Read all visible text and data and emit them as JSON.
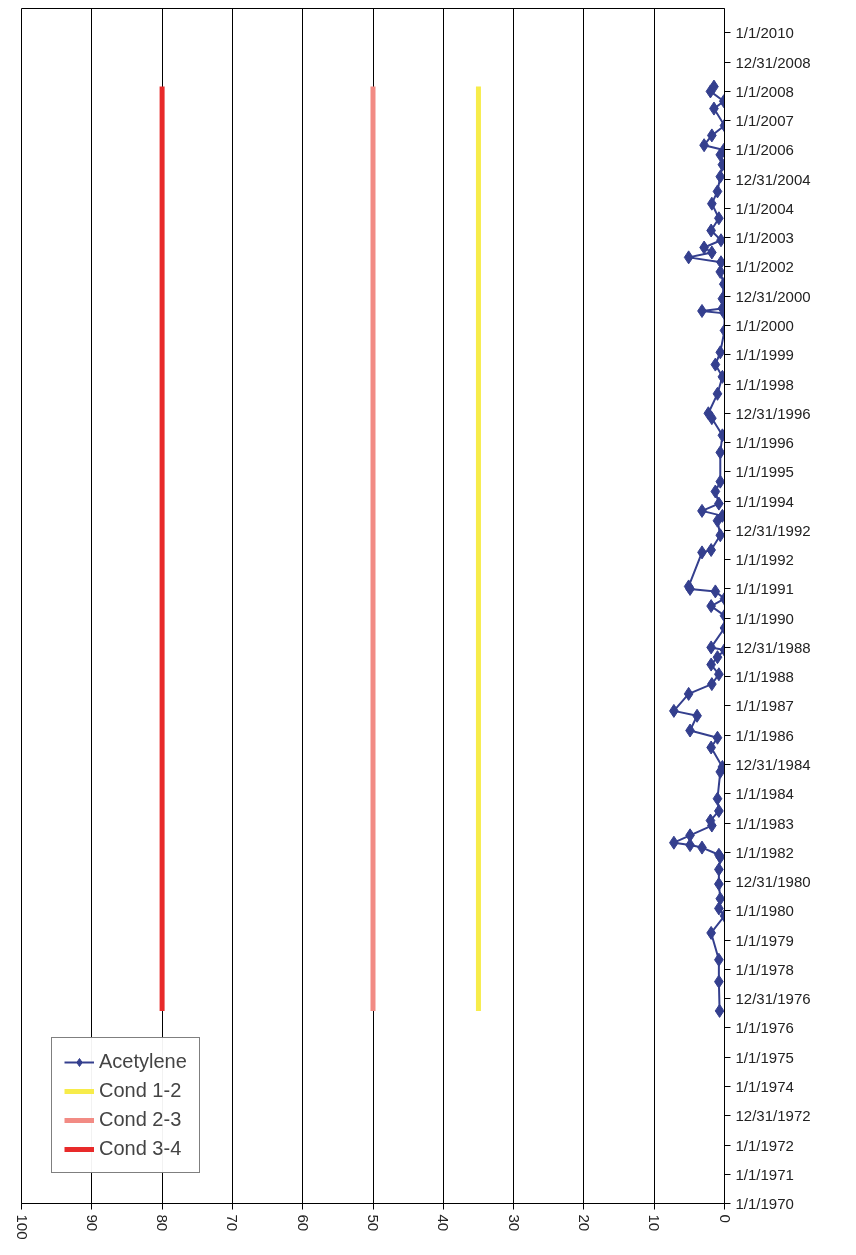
{
  "chart_data": {
    "type": "line",
    "orientation": "horizontal",
    "grid": "x",
    "legend": "bottom left",
    "marker": "diamond",
    "line_style": "solid",
    "xlim": [
      100,
      0
    ],
    "xticks": [
      100,
      90,
      80,
      70,
      60,
      50,
      40,
      30,
      20,
      10,
      0
    ],
    "ylim": [
      "1970-01-01",
      "2010-11-01"
    ],
    "yticks": [
      {
        "value": "1970-01-01",
        "label": "1/1/1970"
      },
      {
        "value": "1971-01-01",
        "label": "1/1/1971"
      },
      {
        "value": "1972-01-01",
        "label": "1/1/1972"
      },
      {
        "value": "1972-12-31",
        "label": "12/31/1972"
      },
      {
        "value": "1974-01-01",
        "label": "1/1/1974"
      },
      {
        "value": "1975-01-01",
        "label": "1/1/1975"
      },
      {
        "value": "1976-01-01",
        "label": "1/1/1976"
      },
      {
        "value": "1976-12-31",
        "label": "12/31/1976"
      },
      {
        "value": "1978-01-01",
        "label": "1/1/1978"
      },
      {
        "value": "1979-01-01",
        "label": "1/1/1979"
      },
      {
        "value": "1980-01-01",
        "label": "1/1/1980"
      },
      {
        "value": "1980-12-31",
        "label": "12/31/1980"
      },
      {
        "value": "1982-01-01",
        "label": "1/1/1982"
      },
      {
        "value": "1983-01-01",
        "label": "1/1/1983"
      },
      {
        "value": "1984-01-01",
        "label": "1/1/1984"
      },
      {
        "value": "1984-12-31",
        "label": "12/31/1984"
      },
      {
        "value": "1986-01-01",
        "label": "1/1/1986"
      },
      {
        "value": "1987-01-01",
        "label": "1/1/1987"
      },
      {
        "value": "1988-01-01",
        "label": "1/1/1988"
      },
      {
        "value": "1988-12-31",
        "label": "12/31/1988"
      },
      {
        "value": "1990-01-01",
        "label": "1/1/1990"
      },
      {
        "value": "1991-01-01",
        "label": "1/1/1991"
      },
      {
        "value": "1992-01-01",
        "label": "1/1/1992"
      },
      {
        "value": "1992-12-31",
        "label": "12/31/1992"
      },
      {
        "value": "1994-01-01",
        "label": "1/1/1994"
      },
      {
        "value": "1995-01-01",
        "label": "1/1/1995"
      },
      {
        "value": "1996-01-01",
        "label": "1/1/1996"
      },
      {
        "value": "1996-12-31",
        "label": "12/31/1996"
      },
      {
        "value": "1998-01-01",
        "label": "1/1/1998"
      },
      {
        "value": "1999-01-01",
        "label": "1/1/1999"
      },
      {
        "value": "2000-01-01",
        "label": "1/1/2000"
      },
      {
        "value": "2000-12-31",
        "label": "12/31/2000"
      },
      {
        "value": "2002-01-01",
        "label": "1/1/2002"
      },
      {
        "value": "2003-01-01",
        "label": "1/1/2003"
      },
      {
        "value": "2004-01-01",
        "label": "1/1/2004"
      },
      {
        "value": "2004-12-31",
        "label": "12/31/2004"
      },
      {
        "value": "2006-01-01",
        "label": "1/1/2006"
      },
      {
        "value": "2007-01-01",
        "label": "1/1/2007"
      },
      {
        "value": "2008-01-01",
        "label": "1/1/2008"
      },
      {
        "value": "2008-12-31",
        "label": "12/31/2008"
      },
      {
        "value": "2010-01-01",
        "label": "1/1/2010"
      }
    ],
    "series": [
      {
        "name": "Acetylene",
        "color": "#343f8e",
        "x": [
          "1976-08",
          "1977-08",
          "1978-05",
          "1979-04",
          "1979-11",
          "1980-02",
          "1980-06",
          "1980-12",
          "1981-06",
          "1981-11",
          "1981-12",
          "1982-03",
          "1982-04",
          "1982-05",
          "1982-08",
          "1982-12",
          "1983-02",
          "1983-06",
          "1983-11",
          "1984-10",
          "1984-12",
          "1985-08",
          "1985-12",
          "1986-03",
          "1986-09",
          "1986-11",
          "1987-06",
          "1987-10",
          "1988-02",
          "1988-06",
          "1988-09",
          "1988-12",
          "1989-01",
          "1989-09",
          "1990-02",
          "1990-06",
          "1990-09",
          "1990-12",
          "1991-01",
          "1991-02",
          "1992-04",
          "1992-05",
          "1992-11",
          "1993-05",
          "1993-07",
          "1993-09",
          "1993-12",
          "1994-05",
          "1994-09",
          "1995-09",
          "1996-04",
          "1996-11",
          "1997-01",
          "1997-09",
          "1998-04",
          "1998-09",
          "1999-02",
          "1999-11",
          "2000-06",
          "2000-07",
          "2000-08",
          "2000-12",
          "2001-06",
          "2001-11",
          "2002-03",
          "2002-05",
          "2002-07",
          "2002-09",
          "2002-12",
          "2003-04",
          "2003-09",
          "2004-03",
          "2004-08",
          "2005-02",
          "2005-07",
          "2005-11",
          "2006-01",
          "2006-03",
          "2006-07",
          "2006-11",
          "2007-06",
          "2007-09",
          "2008-01",
          "2008-03"
        ],
        "values": [
          0.7,
          0.8,
          0.8,
          1.9,
          0,
          0.8,
          0.6,
          0.8,
          0.8,
          0.6,
          0.8,
          3.2,
          4.9,
          7.2,
          4.9,
          1.8,
          2.0,
          0.8,
          1.0,
          0.6,
          0.3,
          1.9,
          1.0,
          4.9,
          3.9,
          7.2,
          5.1,
          1.8,
          0.8,
          1.9,
          1.0,
          0,
          1.9,
          0,
          0,
          1.9,
          0,
          1.3,
          4.9,
          5.1,
          3.2,
          1.9,
          0.6,
          1.0,
          0.3,
          3.2,
          0.8,
          1.3,
          0.6,
          0.6,
          0.3,
          1.8,
          2.3,
          1.0,
          0.3,
          1.3,
          0.6,
          0,
          0,
          3.2,
          0.3,
          0.3,
          0.1,
          0.6,
          0.5,
          5.1,
          1.8,
          2.9,
          0.5,
          1.9,
          0.8,
          1.8,
          1.0,
          0.6,
          0.3,
          0.6,
          0.1,
          2.9,
          1.8,
          0,
          1.5,
          0.1,
          2.0,
          1.5
        ]
      },
      {
        "name": "Cond 1-2",
        "marker": "none",
        "color": "#f7ec4a",
        "x": [
          "1976-08",
          "2008-03"
        ],
        "values": [
          35,
          35
        ]
      },
      {
        "name": "Cond 2-3",
        "marker": "none",
        "color": "#f28b84",
        "x": [
          "1976-08",
          "2008-03"
        ],
        "values": [
          50,
          50
        ]
      },
      {
        "name": "Cond 3-4",
        "marker": "none",
        "color": "#e82a2a",
        "x": [
          "1976-08",
          "2008-03"
        ],
        "values": [
          80,
          80
        ]
      }
    ]
  }
}
